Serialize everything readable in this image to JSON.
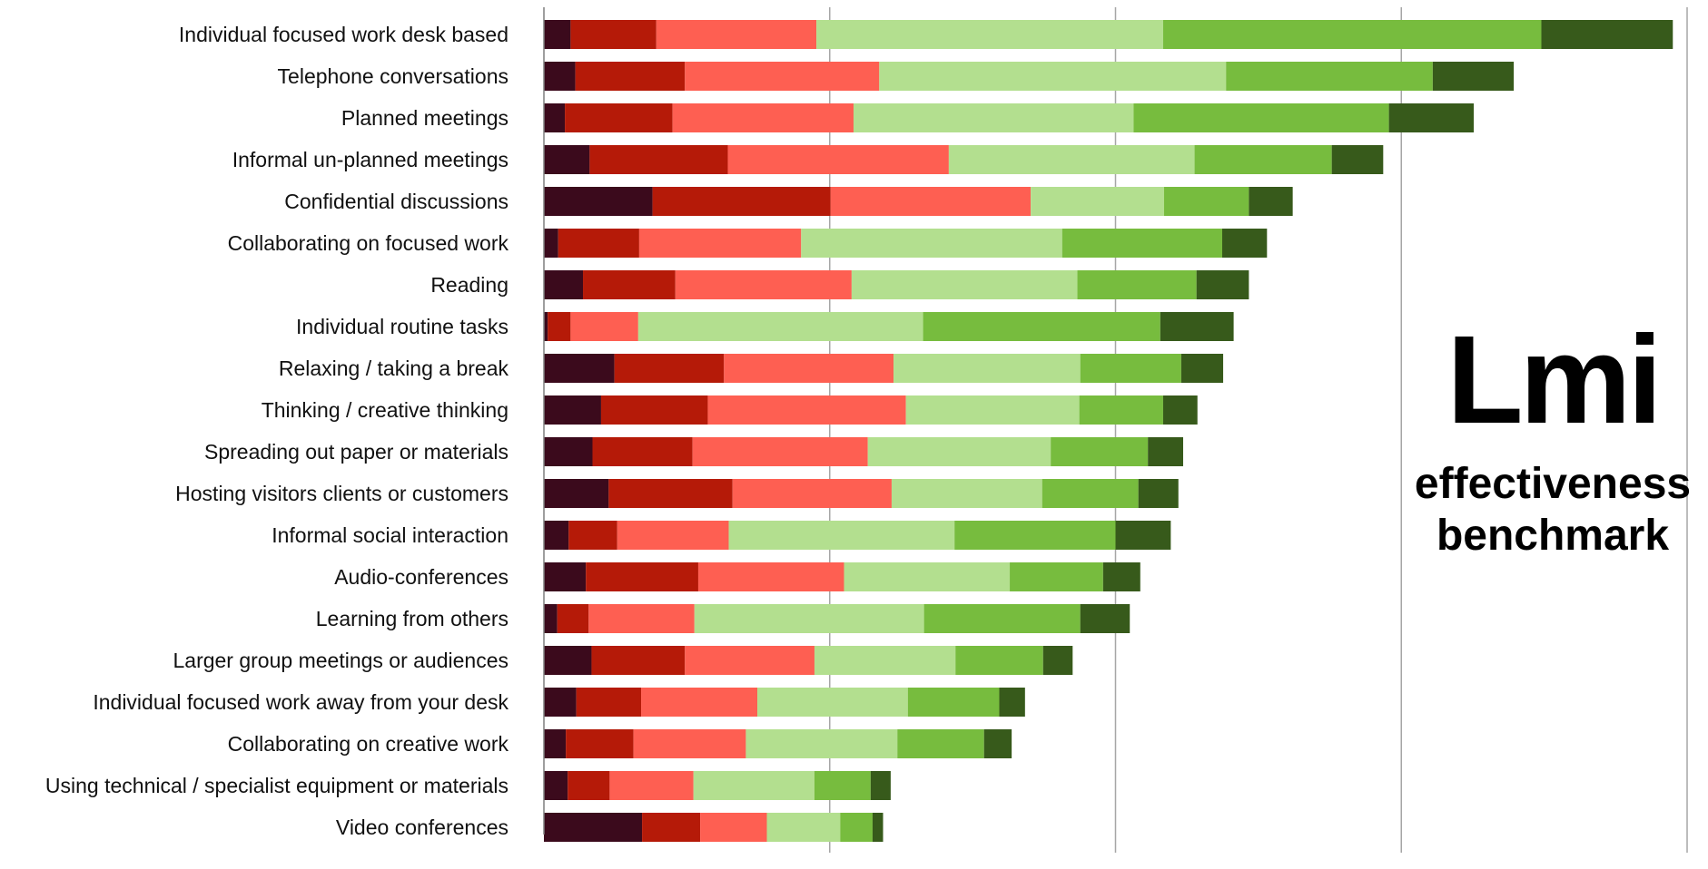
{
  "brand": {
    "logo": "Lmi",
    "line1": "effectiveness",
    "line2": "benchmark"
  },
  "chart_data": {
    "type": "bar",
    "orientation": "horizontal",
    "stacked": true,
    "title": "",
    "xlabel": "",
    "ylabel": "",
    "xlim": [
      0,
      6000
    ],
    "x_ticks": [
      0,
      1500,
      3000,
      4500,
      6000
    ],
    "grid": true,
    "legend": "none",
    "colors": [
      "#3b0a1c",
      "#b51a08",
      "#fe5f52",
      "#b3df8f",
      "#77bc3e",
      "#375a1b"
    ],
    "categories": [
      "Individual focused work desk based",
      "Telephone conversations",
      "Planned meetings",
      "Informal un-planned meetings",
      "Confidential discussions",
      "Collaborating on focused work",
      "Reading",
      "Individual routine tasks",
      "Relaxing / taking a break",
      "Thinking / creative thinking",
      "Spreading out paper or materials",
      "Hosting visitors clients or customers",
      "Informal social interaction",
      "Audio-conferences",
      "Learning from others",
      "Larger group meetings or audiences",
      "Individual focused work away from your desk",
      "Collaborating on creative work",
      "Using technical / specialist equipment or materials",
      "Video conferences"
    ],
    "series": [
      {
        "values": [
          140,
          165,
          110,
          240,
          570,
          75,
          205,
          20,
          370,
          300,
          255,
          340,
          130,
          220,
          70,
          250,
          170,
          115,
          125,
          515
        ]
      },
      {
        "values": [
          450,
          575,
          565,
          725,
          935,
          425,
          485,
          120,
          575,
          560,
          525,
          650,
          255,
          590,
          165,
          490,
          340,
          355,
          220,
          305
        ]
      },
      {
        "values": [
          840,
          1020,
          950,
          1160,
          1050,
          850,
          925,
          355,
          890,
          1040,
          920,
          835,
          585,
          765,
          555,
          680,
          610,
          590,
          440,
          350
        ]
      },
      {
        "values": [
          1820,
          1820,
          1470,
          1290,
          700,
          1370,
          1185,
          1495,
          980,
          910,
          960,
          790,
          1185,
          870,
          1205,
          740,
          790,
          795,
          635,
          385
        ]
      },
      {
        "values": [
          1985,
          1085,
          1340,
          720,
          445,
          840,
          625,
          1245,
          530,
          440,
          510,
          505,
          845,
          490,
          820,
          460,
          480,
          455,
          295,
          170
        ]
      },
      {
        "values": [
          690,
          425,
          445,
          270,
          230,
          235,
          275,
          385,
          220,
          180,
          185,
          210,
          290,
          195,
          260,
          155,
          135,
          145,
          105,
          55
        ]
      }
    ]
  }
}
